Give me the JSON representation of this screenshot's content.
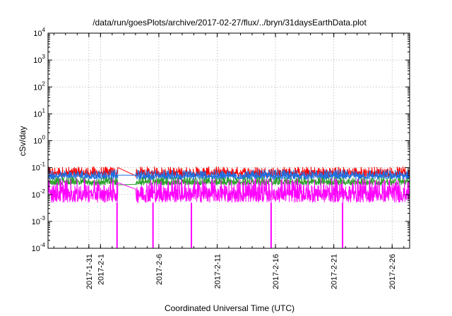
{
  "chart_data": {
    "type": "line",
    "title": "/data/run/goesPlots/archive/2017-02-27/flux/../bryn/31daysEarthData.plot",
    "xlabel": "Coordinated Universal Time (UTC)",
    "ylabel": "cSv/day",
    "y_scale": "log",
    "ylim": [
      0.0001,
      10000
    ],
    "xlim": [
      "2017-01-27T12:00",
      "2017-02-27T12:00"
    ],
    "grid": true,
    "y_ticks": [
      {
        "value": 0.0001,
        "base": "10",
        "exp": "-4"
      },
      {
        "value": 0.001,
        "base": "10",
        "exp": "-3"
      },
      {
        "value": 0.01,
        "base": "10",
        "exp": "-2"
      },
      {
        "value": 0.1,
        "base": "10",
        "exp": "-1"
      },
      {
        "value": 1,
        "base": "10",
        "exp": "0"
      },
      {
        "value": 10,
        "base": "10",
        "exp": "1"
      },
      {
        "value": 100,
        "base": "10",
        "exp": "2"
      },
      {
        "value": 1000,
        "base": "10",
        "exp": "3"
      },
      {
        "value": 10000,
        "base": "10",
        "exp": "4"
      }
    ],
    "x_ticks": [
      {
        "date": "2017-01-31",
        "label": "2017-1-31"
      },
      {
        "date": "2017-02-01",
        "label": "2017-2-1"
      },
      {
        "date": "2017-02-06",
        "label": "2017-2-6"
      },
      {
        "date": "2017-02-11",
        "label": "2017-2-11"
      },
      {
        "date": "2017-02-16",
        "label": "2017-2-16"
      },
      {
        "date": "2017-02-21",
        "label": "2017-2-21"
      },
      {
        "date": "2017-02-26",
        "label": "2017-2-26"
      }
    ],
    "data_gap": {
      "start": "2017-02-02T12:00",
      "end": "2017-02-04T00:00"
    },
    "dropouts": [
      "2017-02-02T10:00",
      "2017-02-05T12:00",
      "2017-02-08T19:00",
      "2017-02-15T15:00",
      "2017-02-21T18:00"
    ],
    "series": [
      {
        "color": "#ff0000",
        "typical": 0.065,
        "spread_low": 0.045,
        "spread_high": 0.11
      },
      {
        "color": "#1f6fe0",
        "typical": 0.05,
        "spread_low": 0.035,
        "spread_high": 0.085
      },
      {
        "color": "#2ca02c",
        "typical": 0.03,
        "spread_low": 0.022,
        "spread_high": 0.045
      },
      {
        "color": "#ff00ff",
        "typical": 0.015,
        "spread_low": 0.005,
        "spread_high": 0.04,
        "dropout_min": 0.0001
      }
    ]
  }
}
